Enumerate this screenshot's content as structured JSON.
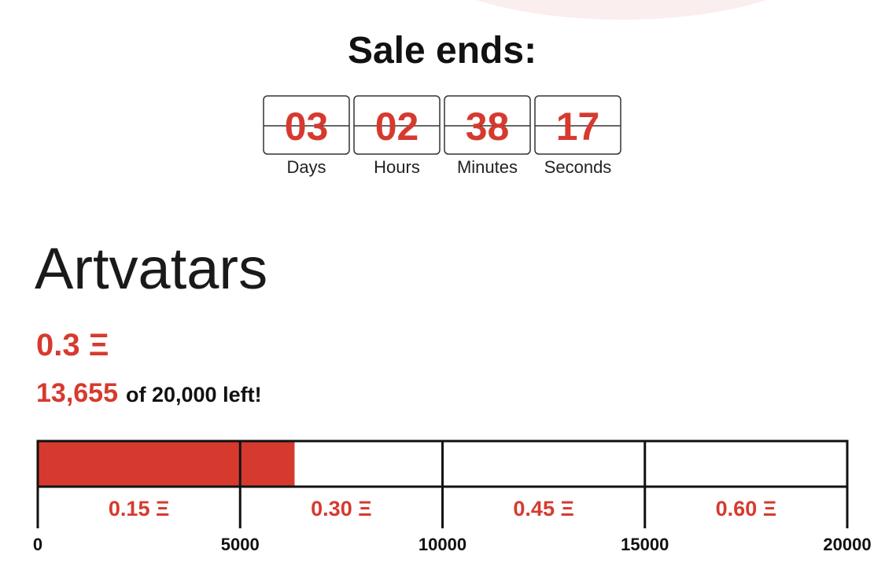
{
  "countdown": {
    "title": "Sale ends:",
    "units": [
      {
        "value": "03",
        "label": "Days"
      },
      {
        "value": "02",
        "label": "Hours"
      },
      {
        "value": "38",
        "label": "Minutes"
      },
      {
        "value": "17",
        "label": "Seconds"
      }
    ]
  },
  "product": {
    "name": "Artvatars",
    "price": "0.3 Ξ",
    "remaining": "13,655",
    "remaining_suffix": "of 20,000 left!"
  },
  "progress": {
    "sold": 6345,
    "color": "#d63a2f",
    "xlim": [
      0,
      20000
    ],
    "xticks": [
      0,
      5000,
      10000,
      15000,
      20000
    ],
    "tiers": [
      "0.15 Ξ",
      "0.30 Ξ",
      "0.45 Ξ",
      "0.60 Ξ"
    ]
  }
}
